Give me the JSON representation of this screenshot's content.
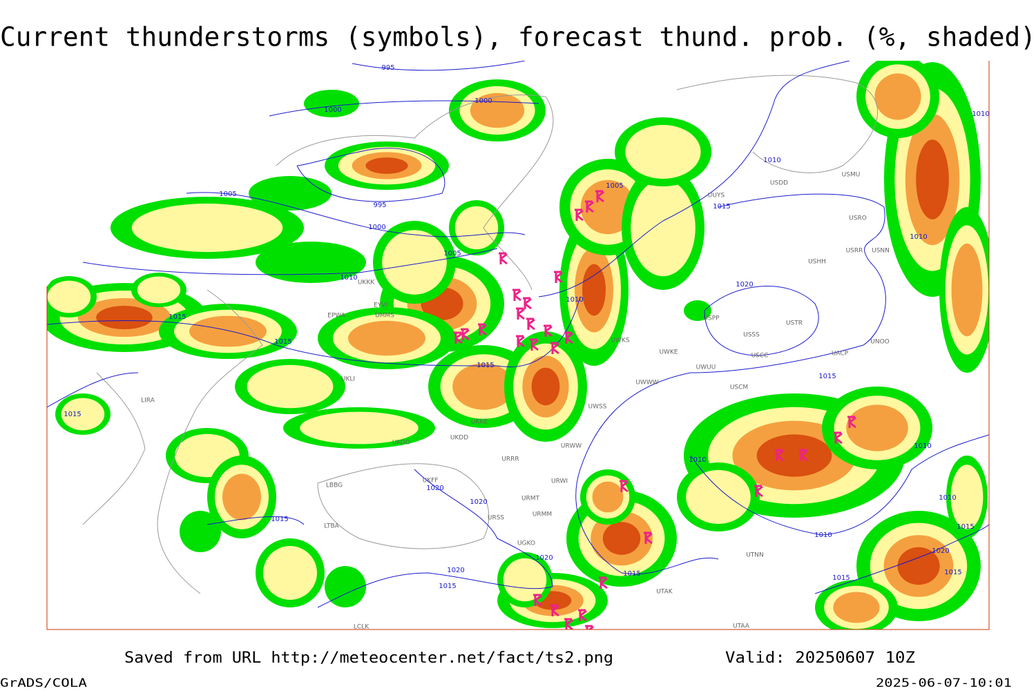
{
  "title": "Current thunderstorms (symbols), forecast thund. prob. (%, shaded)",
  "footer": {
    "saved": "Saved from URL http://meteocenter.net/fact/ts2.png",
    "valid": "Valid: 20250607 10Z",
    "software": "GrADS/COLA",
    "timestamp": "2025-06-07-10:01"
  },
  "isobar_labels": [
    995,
    1000,
    1000,
    1005,
    995,
    1000,
    1005,
    1010,
    1005,
    1015,
    1010,
    1010,
    1010,
    1020,
    1010,
    1015,
    1015,
    1015,
    1015,
    1015,
    1010,
    1010,
    1010,
    1010,
    1015,
    1020,
    1015,
    1015,
    1020,
    1020,
    1020,
    1020,
    1015,
    1015,
    1015
  ],
  "stations": [
    "USMU",
    "USDD",
    "USRO",
    "USRR",
    "USNN",
    "USHH",
    "USSS",
    "USTR",
    "USCC",
    "USCM",
    "UWKS",
    "UWKE",
    "UWWW",
    "UWSS",
    "URWW",
    "URRR",
    "URWI",
    "URMT",
    "URMM",
    "URSS",
    "UGKO",
    "UTAK",
    "UTNN",
    "UTAA",
    "UACP",
    "UNOO",
    "UUYS",
    "UKLI",
    "UKKK",
    "UMMS",
    "EPWA",
    "EYVI",
    "UKKE",
    "UKDD",
    "UKOO",
    "LIRA",
    "LBBG",
    "LTBA",
    "LCLK",
    "UKFF",
    "USPP",
    "UWUU"
  ]
}
